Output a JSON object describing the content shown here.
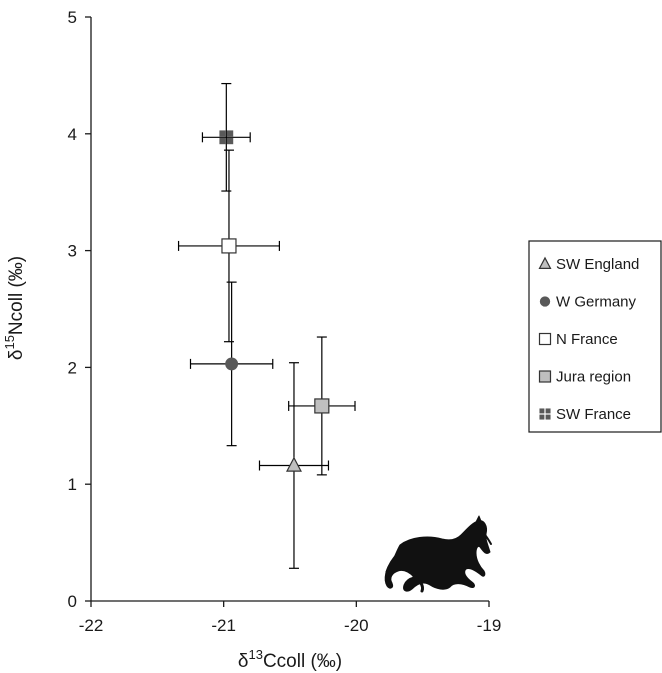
{
  "chart_data": {
    "type": "scatter",
    "xlabel": {
      "prefix": "δ",
      "sup": "13",
      "rest": "Ccoll (‰)"
    },
    "ylabel": {
      "prefix": "δ",
      "sup": "15",
      "rest": "Ncoll (‰)"
    },
    "xlim": [
      -22,
      -19
    ],
    "ylim": [
      0,
      5
    ],
    "x_ticks": [
      -22,
      -21,
      -20,
      -19
    ],
    "y_ticks": [
      0,
      1,
      2,
      3,
      4,
      5
    ],
    "grid": false,
    "legend_position": "right",
    "series": [
      {
        "name": "SW England",
        "marker": "triangle",
        "fill": "#bfbfbf",
        "x": -20.47,
        "y": 1.16,
        "xerr": 0.26,
        "yerr": 0.88
      },
      {
        "name": "W Germany",
        "marker": "circle",
        "fill": "#595959",
        "x": -20.94,
        "y": 2.03,
        "xerr": 0.31,
        "yerr": 0.7
      },
      {
        "name": "N France",
        "marker": "square-open",
        "fill": "#ffffff",
        "x": -20.96,
        "y": 3.04,
        "xerr": 0.38,
        "yerr": 0.82
      },
      {
        "name": "Jura region",
        "marker": "square",
        "fill": "#bfbfbf",
        "x": -20.26,
        "y": 1.67,
        "xerr": 0.25,
        "yerr": 0.59
      },
      {
        "name": "SW France",
        "marker": "square-quad",
        "fill": "#595959",
        "x": -20.98,
        "y": 3.97,
        "xerr": 0.18,
        "yerr": 0.46
      }
    ]
  },
  "icons": {
    "silhouette": "horse-silhouette-icon"
  },
  "colors": {
    "axis": "#1a1a1a",
    "marker_stroke": "#333333"
  }
}
